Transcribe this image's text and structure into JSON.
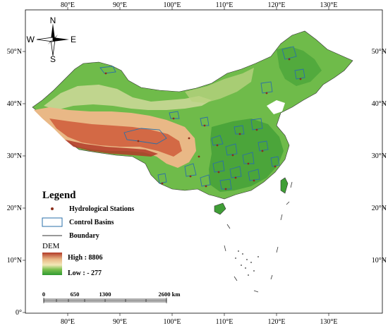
{
  "map": {
    "longitude_labels": [
      "80°E",
      "90°E",
      "100°E",
      "110°E",
      "120°E",
      "130°E"
    ],
    "latitude_labels": [
      "0°",
      "10°N",
      "20°N",
      "30°N",
      "40°N",
      "50°N"
    ],
    "corner_label": "0°"
  },
  "compass": {
    "north": "N",
    "south": "S",
    "east": "E",
    "west": "W"
  },
  "legend": {
    "title": "Legend",
    "items": [
      {
        "label": "Hydrological Stations",
        "symbol": "dot",
        "color": "#8b2e1a"
      },
      {
        "label": "Control Basins",
        "symbol": "box",
        "color": "#2a6fa8"
      },
      {
        "label": "Boundary",
        "symbol": "line",
        "color": "#333333"
      }
    ],
    "dem": {
      "title": "DEM",
      "high": "High : 8806",
      "low": "Low : - 277"
    }
  },
  "scale_bar": {
    "labels": [
      "0",
      "650",
      "1300",
      "2600 km"
    ]
  },
  "colors": {
    "lowland": "#3f9e36",
    "plain": "#6fbb4a",
    "upland": "#cfd99a",
    "highland": "#e9b886",
    "plateau": "#d0603e",
    "peak": "#b23a28",
    "basin_outline": "#2a6fa8",
    "stations": "#8b2e1a"
  }
}
